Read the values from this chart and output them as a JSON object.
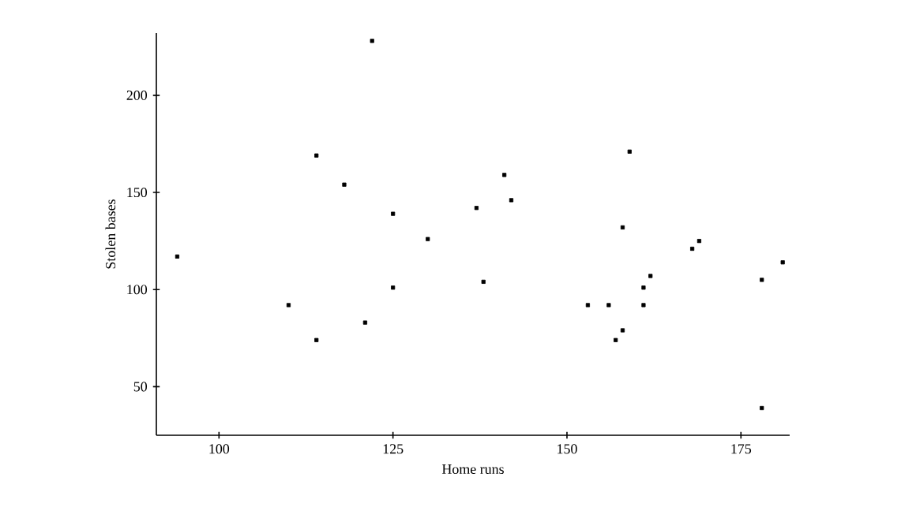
{
  "chart_data": {
    "type": "scatter",
    "xlabel": "Home runs",
    "ylabel": "Stolen bases",
    "marker": "square",
    "color": "#000000",
    "x": [
      94,
      110,
      114,
      114,
      118,
      122,
      121,
      125,
      125,
      130,
      137,
      141,
      142,
      138,
      153,
      156,
      159,
      158,
      158,
      157,
      161,
      161,
      162,
      168,
      169,
      178,
      181,
      178
    ],
    "values": [
      117,
      92,
      169,
      74,
      154,
      228,
      83,
      139,
      101,
      126,
      142,
      159,
      146,
      104,
      92,
      92,
      171,
      132,
      79,
      74,
      92,
      101,
      107,
      121,
      125,
      105,
      114,
      39
    ],
    "xlim": [
      91,
      182
    ],
    "ylim": [
      25,
      232
    ],
    "xticks": [
      100,
      125,
      150,
      175
    ],
    "yticks": [
      50,
      100,
      150,
      200
    ]
  }
}
